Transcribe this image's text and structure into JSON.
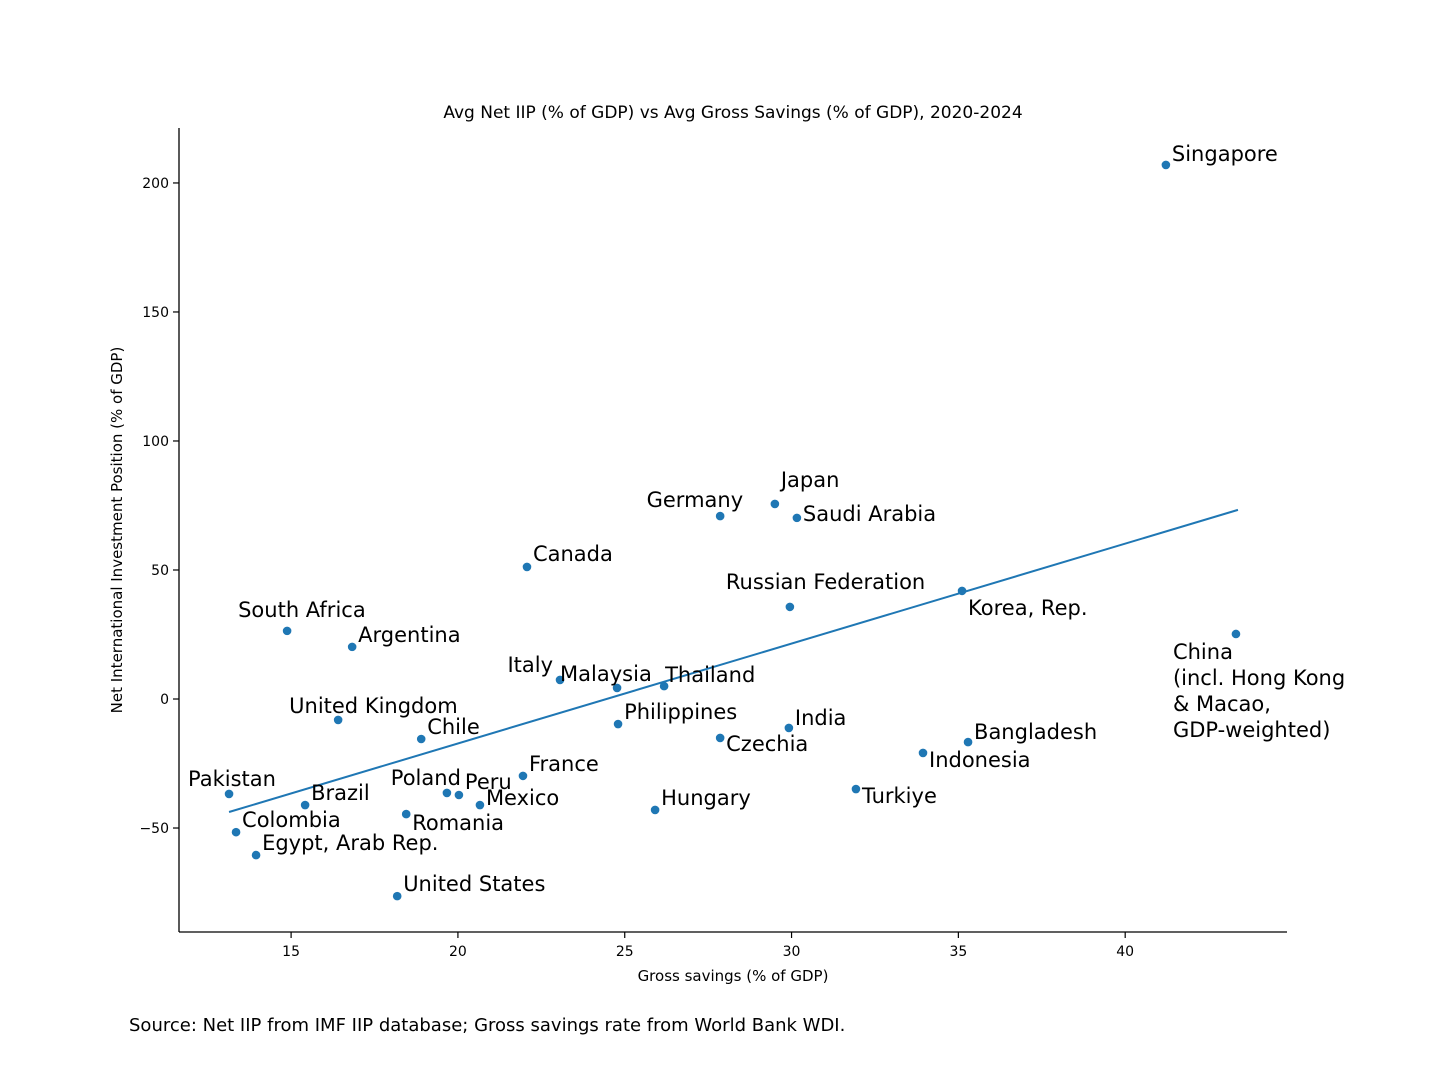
{
  "chart_data": {
    "type": "scatter",
    "title": "Avg Net IIP (% of GDP) vs Avg Gross Savings (% of GDP), 2020-2024",
    "xlabel": "Gross savings (% of GDP)",
    "ylabel": "Net International Investment Position (% of GDP)",
    "xlim": [
      11.64,
      44.85
    ],
    "ylim": [
      -90.3,
      221.3
    ],
    "xticks": [
      15,
      20,
      25,
      30,
      35,
      40
    ],
    "yticks": [
      -50,
      0,
      50,
      100,
      150,
      200
    ],
    "grid": false,
    "color": "#1f77b4",
    "points": [
      {
        "label": "Singapore",
        "x": 41.22,
        "y": 207.0
      },
      {
        "label": "Japan",
        "x": 29.5,
        "y": 75.6
      },
      {
        "label": "Germany",
        "x": 27.86,
        "y": 70.9
      },
      {
        "label": "Saudi Arabia",
        "x": 30.16,
        "y": 70.2
      },
      {
        "label": "Canada",
        "x": 22.07,
        "y": 51.2
      },
      {
        "label": "Russian Federation",
        "x": 29.95,
        "y": 35.7
      },
      {
        "label": "Korea, Rep.",
        "x": 35.11,
        "y": 41.9
      },
      {
        "label": "China\n(incl. Hong Kong\n& Macao,\nGDP-weighted)",
        "x": 43.32,
        "y": 25.2
      },
      {
        "label": "South Africa",
        "x": 14.88,
        "y": 26.4
      },
      {
        "label": "Argentina",
        "x": 16.83,
        "y": 20.2
      },
      {
        "label": "Italy",
        "x": 23.06,
        "y": 7.4
      },
      {
        "label": "Malaysia",
        "x": 24.77,
        "y": 4.3
      },
      {
        "label": "Thailand",
        "x": 26.18,
        "y": 5.0
      },
      {
        "label": "Philippines",
        "x": 24.8,
        "y": -9.7
      },
      {
        "label": "India",
        "x": 29.92,
        "y": -11.2
      },
      {
        "label": "Czechia",
        "x": 27.86,
        "y": -15.1
      },
      {
        "label": "Bangladesh",
        "x": 35.29,
        "y": -16.7
      },
      {
        "label": "Indonesia",
        "x": 33.94,
        "y": -20.9
      },
      {
        "label": "United Kingdom",
        "x": 16.41,
        "y": -8.1
      },
      {
        "label": "Chile",
        "x": 18.9,
        "y": -15.5
      },
      {
        "label": "France",
        "x": 21.95,
        "y": -29.8
      },
      {
        "label": "Turkiye",
        "x": 31.93,
        "y": -34.9
      },
      {
        "label": "Hungary",
        "x": 25.91,
        "y": -43.0
      },
      {
        "label": "Pakistan",
        "x": 13.14,
        "y": -36.8
      },
      {
        "label": "Brazil",
        "x": 15.42,
        "y": -41.1
      },
      {
        "label": "Poland",
        "x": 19.67,
        "y": -36.4
      },
      {
        "label": "Peru",
        "x": 20.03,
        "y": -37.2
      },
      {
        "label": "Mexico",
        "x": 20.66,
        "y": -41.1
      },
      {
        "label": "Romania",
        "x": 18.45,
        "y": -44.6
      },
      {
        "label": "Colombia",
        "x": 13.35,
        "y": -51.6
      },
      {
        "label": "Egypt, Arab Rep.",
        "x": 13.95,
        "y": -60.5
      },
      {
        "label": "United States",
        "x": 18.18,
        "y": -76.4
      }
    ],
    "trendline": {
      "x": [
        13.14,
        43.38
      ],
      "y": [
        -43.8,
        73.3
      ]
    }
  },
  "source_note": "Source: Net IIP from IMF IIP database; Gross savings rate from World Bank WDI."
}
